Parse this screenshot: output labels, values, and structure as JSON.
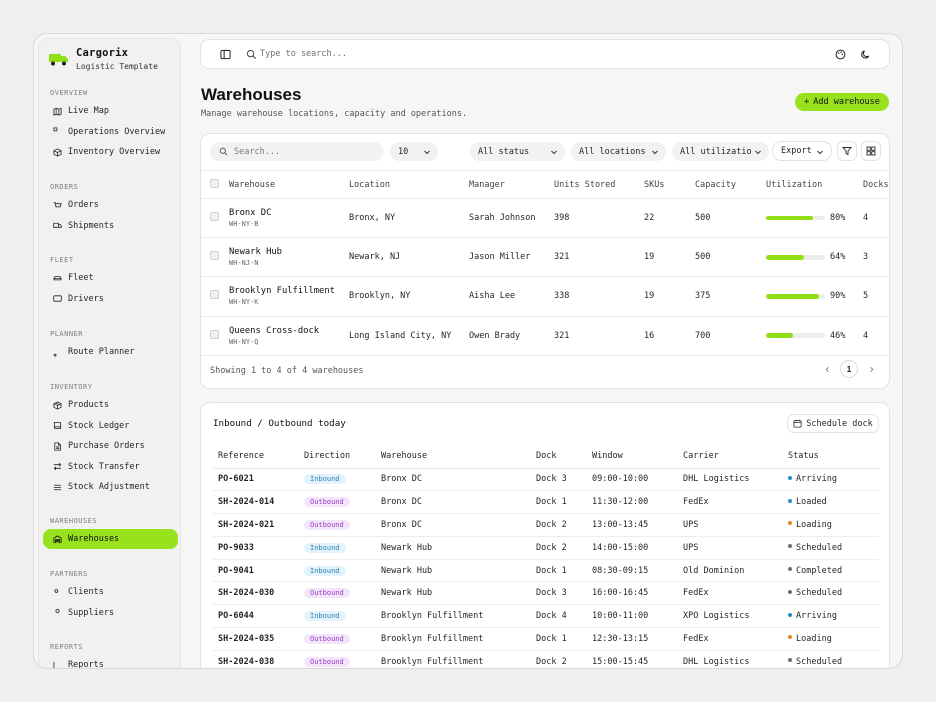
{
  "brand": {
    "name": "Cargorix",
    "subtitle": "Logistic Template"
  },
  "sidebar": {
    "sections": [
      {
        "title": "OVERVIEW",
        "items": [
          {
            "label": "Live Map",
            "icon": "map-icon"
          },
          {
            "label": "Operations Overview",
            "icon": "grid-icon"
          },
          {
            "label": "Inventory Overview",
            "icon": "box-icon"
          }
        ]
      },
      {
        "title": "ORDERS",
        "items": [
          {
            "label": "Orders",
            "icon": "cart-icon"
          },
          {
            "label": "Shipments",
            "icon": "truck-icon"
          }
        ]
      },
      {
        "title": "FLEET",
        "items": [
          {
            "label": "Fleet",
            "icon": "car-icon"
          },
          {
            "label": "Drivers",
            "icon": "id-card-icon"
          }
        ]
      },
      {
        "title": "PLANNER",
        "items": [
          {
            "label": "Route Planner",
            "icon": "route-icon"
          }
        ]
      },
      {
        "title": "INVENTORY",
        "items": [
          {
            "label": "Products",
            "icon": "package-icon"
          },
          {
            "label": "Stock Ledger",
            "icon": "book-icon"
          },
          {
            "label": "Purchase Orders",
            "icon": "file-icon"
          },
          {
            "label": "Stock Transfer",
            "icon": "transfer-icon"
          },
          {
            "label": "Stock Adjustment",
            "icon": "sliders-icon"
          }
        ]
      },
      {
        "title": "WAREHOUSES",
        "items": [
          {
            "label": "Warehouses",
            "icon": "warehouse-icon",
            "active": true
          }
        ]
      },
      {
        "title": "PARTNERS",
        "items": [
          {
            "label": "Clients",
            "icon": "users-icon"
          },
          {
            "label": "Suppliers",
            "icon": "user-icon"
          }
        ]
      },
      {
        "title": "REPORTS",
        "items": [
          {
            "label": "Reports",
            "icon": "chart-icon"
          }
        ]
      }
    ]
  },
  "topbar": {
    "search_placeholder": "Type to search..."
  },
  "header": {
    "title": "Warehouses",
    "subtitle": "Manage warehouse locations, capacity and operations.",
    "add_button": "Add warehouse"
  },
  "filters": {
    "search_placeholder": "Search...",
    "page_size": "10",
    "status": "All status",
    "locations": "All locations",
    "utilization": "All utilization",
    "export": "Export"
  },
  "warehouses": {
    "columns": [
      "Warehouse",
      "Location",
      "Manager",
      "Units Stored",
      "SKUs",
      "Capacity",
      "Utilization",
      "Docks"
    ],
    "rows": [
      {
        "name": "Bronx DC",
        "code": "WH-NY-B",
        "location": "Bronx, NY",
        "manager": "Sarah Johnson",
        "units": "398",
        "skus": "22",
        "capacity": "500",
        "utilization": 80,
        "utilization_label": "80%",
        "docks": "4"
      },
      {
        "name": "Newark Hub",
        "code": "WH-NJ-N",
        "location": "Newark, NJ",
        "manager": "Jason Miller",
        "units": "321",
        "skus": "19",
        "capacity": "500",
        "utilization": 64,
        "utilization_label": "64%",
        "docks": "3"
      },
      {
        "name": "Brooklyn Fulfillment",
        "code": "WH-NY-K",
        "location": "Brooklyn, NY",
        "manager": "Aisha Lee",
        "units": "338",
        "skus": "19",
        "capacity": "375",
        "utilization": 90,
        "utilization_label": "90%",
        "docks": "5"
      },
      {
        "name": "Queens Cross-dock",
        "code": "WH-NY-Q",
        "location": "Long Island City, NY",
        "manager": "Owen Brady",
        "units": "321",
        "skus": "16",
        "capacity": "700",
        "utilization": 46,
        "utilization_label": "46%",
        "docks": "4"
      }
    ],
    "footer": "Showing 1 to 4 of 4 warehouses",
    "current_page": "1"
  },
  "inbound": {
    "title": "Inbound / Outbound today",
    "schedule_button": "Schedule dock",
    "columns": [
      "Reference",
      "Direction",
      "Warehouse",
      "Dock",
      "Window",
      "Carrier",
      "Status"
    ],
    "rows": [
      {
        "ref": "PO-6021",
        "direction": "Inbound",
        "warehouse": "Bronx DC",
        "dock": "Dock 3",
        "window": "09:00-10:00",
        "carrier": "DHL Logistics",
        "status": "Arriving",
        "status_color": "#1f8fc4"
      },
      {
        "ref": "SH-2024-014",
        "direction": "Outbound",
        "warehouse": "Bronx DC",
        "dock": "Dock 1",
        "window": "11:30-12:00",
        "carrier": "FedEx",
        "status": "Loaded",
        "status_color": "#1f8fc4"
      },
      {
        "ref": "SH-2024-021",
        "direction": "Outbound",
        "warehouse": "Bronx DC",
        "dock": "Dock 2",
        "window": "13:00-13:45",
        "carrier": "UPS",
        "status": "Loading",
        "status_color": "#f07f1e"
      },
      {
        "ref": "PO-9033",
        "direction": "Inbound",
        "warehouse": "Newark Hub",
        "dock": "Dock 2",
        "window": "14:00-15:00",
        "carrier": "UPS",
        "status": "Scheduled",
        "status_color": "#6f6f6f"
      },
      {
        "ref": "PO-9041",
        "direction": "Inbound",
        "warehouse": "Newark Hub",
        "dock": "Dock 1",
        "window": "08:30-09:15",
        "carrier": "Old Dominion",
        "status": "Completed",
        "status_color": "#6f6f6f"
      },
      {
        "ref": "SH-2024-030",
        "direction": "Outbound",
        "warehouse": "Newark Hub",
        "dock": "Dock 3",
        "window": "16:00-16:45",
        "carrier": "FedEx",
        "status": "Scheduled",
        "status_color": "#6f6f6f"
      },
      {
        "ref": "PO-6044",
        "direction": "Inbound",
        "warehouse": "Brooklyn Fulfillment",
        "dock": "Dock 4",
        "window": "10:00-11:00",
        "carrier": "XPO Logistics",
        "status": "Arriving",
        "status_color": "#1f8fc4"
      },
      {
        "ref": "SH-2024-035",
        "direction": "Outbound",
        "warehouse": "Brooklyn Fulfillment",
        "dock": "Dock 1",
        "window": "12:30-13:15",
        "carrier": "FedEx",
        "status": "Loading",
        "status_color": "#f07f1e"
      },
      {
        "ref": "SH-2024-038",
        "direction": "Outbound",
        "warehouse": "Brooklyn Fulfillment",
        "dock": "Dock 2",
        "window": "15:00-15:45",
        "carrier": "DHL Logistics",
        "status": "Scheduled",
        "status_color": "#6f6f6f"
      }
    ]
  },
  "colors": {
    "accent": "#97e21c",
    "inbound": "#2a82b5",
    "outbound": "#9a3bc7"
  }
}
